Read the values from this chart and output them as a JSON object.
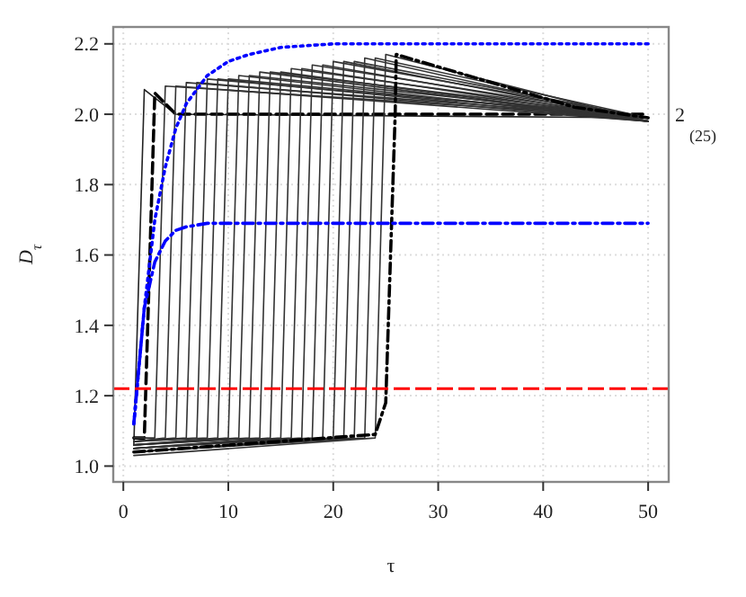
{
  "chart_data": {
    "type": "line",
    "xlabel": "τ",
    "ylabel": "D$_{τ}$",
    "xlim": [
      -0.96,
      51.96
    ],
    "ylim": [
      0.955,
      2.248
    ],
    "xticks": [
      0,
      10,
      20,
      30,
      40,
      50
    ],
    "yticks": [
      {
        "value": 1.0,
        "label": "1.0"
      },
      {
        "value": 1.2,
        "label": "1.2"
      },
      {
        "value": 1.4,
        "label": "1.4"
      },
      {
        "value": 1.6,
        "label": "1.6"
      },
      {
        "value": 1.8,
        "label": "1.8"
      },
      {
        "value": 2.0,
        "label": "2.0"
      },
      {
        "value": 2.2,
        "label": "2.2"
      }
    ],
    "grid": true,
    "marker": "none",
    "ref_lines": [
      {
        "axis": "y",
        "value": 1.22,
        "color": "#ff0000",
        "line_style": "dashed"
      }
    ],
    "annotations": [
      {
        "text": "2",
        "x": 50,
        "y": 2.0
      },
      {
        "text": "(25)",
        "x": 50,
        "y": 1.97
      }
    ],
    "series": [
      {
        "color": "#222222",
        "line_style": "solid",
        "x": [
          1,
          2,
          5,
          50
        ],
        "values": [
          1.06,
          2.07,
          2.0,
          1.99
        ]
      },
      {
        "color": "#000000",
        "line_style": "dashed",
        "x": [
          1,
          2,
          3,
          5,
          50
        ],
        "values": [
          1.08,
          1.08,
          2.06,
          2.0,
          2.0
        ]
      },
      {
        "color": "#333333",
        "line_style": "solid",
        "x": [
          1,
          3,
          4,
          50
        ],
        "values": [
          1.08,
          1.08,
          2.08,
          1.99
        ]
      },
      {
        "color": "#333333",
        "line_style": "solid",
        "x": [
          1,
          4,
          5,
          50
        ],
        "values": [
          1.07,
          1.08,
          2.08,
          1.98
        ]
      },
      {
        "color": "#333333",
        "line_style": "solid",
        "x": [
          1,
          5,
          6,
          50
        ],
        "values": [
          1.07,
          1.08,
          2.09,
          1.99
        ]
      },
      {
        "color": "#333333",
        "line_style": "solid",
        "x": [
          1,
          6,
          7,
          50
        ],
        "values": [
          1.07,
          1.08,
          2.09,
          1.98
        ]
      },
      {
        "color": "#333333",
        "line_style": "solid",
        "x": [
          1,
          7,
          8,
          50
        ],
        "values": [
          1.07,
          1.08,
          2.1,
          1.99
        ]
      },
      {
        "color": "#333333",
        "line_style": "solid",
        "x": [
          1,
          8,
          9,
          50
        ],
        "values": [
          1.07,
          1.08,
          2.1,
          1.98
        ]
      },
      {
        "color": "#333333",
        "line_style": "solid",
        "x": [
          1,
          9,
          10,
          50
        ],
        "values": [
          1.06,
          1.08,
          2.1,
          1.99
        ]
      },
      {
        "color": "#333333",
        "line_style": "solid",
        "x": [
          1,
          10,
          11,
          50
        ],
        "values": [
          1.06,
          1.08,
          2.11,
          1.98
        ]
      },
      {
        "color": "#333333",
        "line_style": "solid",
        "x": [
          1,
          11,
          12,
          50
        ],
        "values": [
          1.06,
          1.08,
          2.11,
          1.99
        ]
      },
      {
        "color": "#333333",
        "line_style": "solid",
        "x": [
          1,
          12,
          13,
          50
        ],
        "values": [
          1.06,
          1.08,
          2.12,
          1.98
        ]
      },
      {
        "color": "#333333",
        "line_style": "solid",
        "x": [
          1,
          13,
          14,
          50
        ],
        "values": [
          1.06,
          1.08,
          2.12,
          1.99
        ]
      },
      {
        "color": "#333333",
        "line_style": "solid",
        "x": [
          1,
          14,
          15,
          50
        ],
        "values": [
          1.05,
          1.08,
          2.12,
          1.98
        ]
      },
      {
        "color": "#333333",
        "line_style": "solid",
        "x": [
          1,
          15,
          16,
          50
        ],
        "values": [
          1.05,
          1.08,
          2.13,
          1.99
        ]
      },
      {
        "color": "#333333",
        "line_style": "solid",
        "x": [
          1,
          16,
          17,
          50
        ],
        "values": [
          1.05,
          1.08,
          2.13,
          1.98
        ]
      },
      {
        "color": "#333333",
        "line_style": "solid",
        "x": [
          1,
          17,
          18,
          50
        ],
        "values": [
          1.05,
          1.08,
          2.14,
          1.99
        ]
      },
      {
        "color": "#333333",
        "line_style": "solid",
        "x": [
          1,
          18,
          19,
          50
        ],
        "values": [
          1.05,
          1.08,
          2.14,
          1.98
        ]
      },
      {
        "color": "#333333",
        "line_style": "solid",
        "x": [
          1,
          19,
          20,
          50
        ],
        "values": [
          1.04,
          1.08,
          2.15,
          1.99
        ]
      },
      {
        "color": "#333333",
        "line_style": "solid",
        "x": [
          1,
          20,
          21,
          50
        ],
        "values": [
          1.04,
          1.08,
          2.15,
          1.98
        ]
      },
      {
        "color": "#333333",
        "line_style": "solid",
        "x": [
          1,
          21,
          22,
          50
        ],
        "values": [
          1.04,
          1.08,
          2.15,
          1.99
        ]
      },
      {
        "color": "#333333",
        "line_style": "solid",
        "x": [
          1,
          22,
          23,
          50
        ],
        "values": [
          1.04,
          1.08,
          2.16,
          1.98
        ]
      },
      {
        "color": "#333333",
        "line_style": "solid",
        "x": [
          1,
          23,
          24,
          50
        ],
        "values": [
          1.04,
          1.08,
          2.16,
          1.99
        ]
      },
      {
        "color": "#333333",
        "line_style": "solid",
        "x": [
          1,
          24,
          25,
          50
        ],
        "values": [
          1.03,
          1.08,
          2.17,
          1.98
        ]
      },
      {
        "color": "#000000",
        "line_style": "dashdot",
        "x": [
          1,
          24,
          25,
          25.9,
          26,
          43,
          50
        ],
        "values": [
          1.04,
          1.09,
          1.18,
          2.0,
          2.17,
          2.02,
          1.99
        ]
      },
      {
        "color": "#0000ff",
        "line_style": "dotted",
        "x": [
          1,
          2,
          3,
          4,
          5,
          6,
          8,
          10,
          12,
          15,
          20,
          25,
          30,
          50
        ],
        "values": [
          1.12,
          1.45,
          1.7,
          1.85,
          1.96,
          2.03,
          2.11,
          2.15,
          2.17,
          2.19,
          2.2,
          2.2,
          2.2,
          2.2
        ]
      },
      {
        "color": "#0000ff",
        "line_style": "dashdot",
        "x": [
          1,
          2,
          3,
          4,
          5,
          6,
          8,
          10,
          50
        ],
        "values": [
          1.12,
          1.45,
          1.58,
          1.64,
          1.67,
          1.68,
          1.69,
          1.69,
          1.69
        ]
      }
    ]
  }
}
